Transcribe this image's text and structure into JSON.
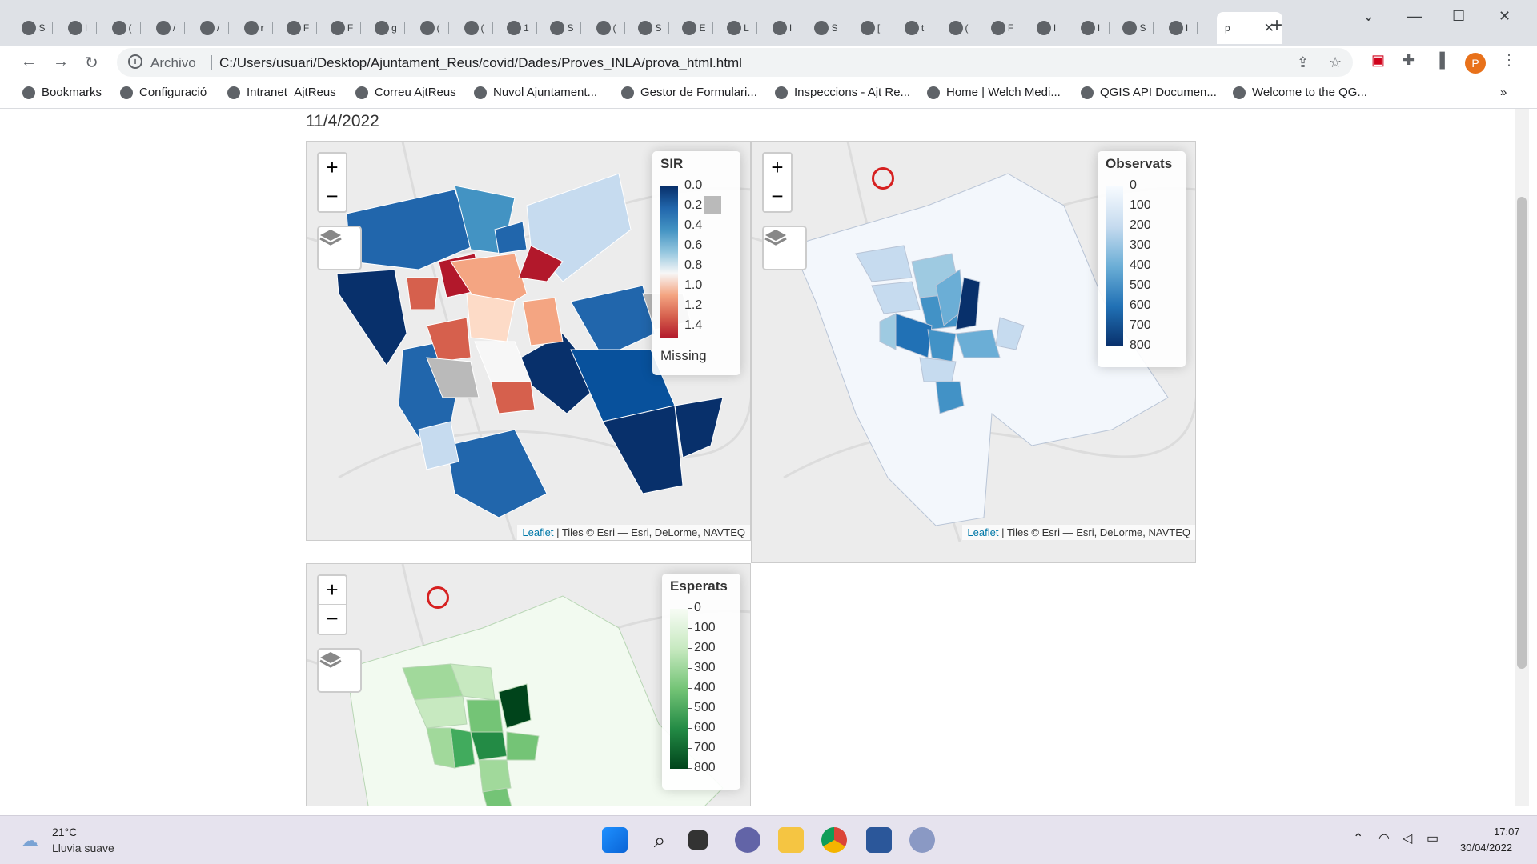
{
  "browser": {
    "tabs": [
      {
        "label": "S"
      },
      {
        "label": "I"
      },
      {
        "label": "("
      },
      {
        "label": "/"
      },
      {
        "label": "/"
      },
      {
        "label": "r"
      },
      {
        "label": "F"
      },
      {
        "label": "F"
      },
      {
        "label": "g"
      },
      {
        "label": "("
      },
      {
        "label": "("
      },
      {
        "label": "1"
      },
      {
        "label": "S"
      },
      {
        "label": "("
      },
      {
        "label": "S"
      },
      {
        "label": "E"
      },
      {
        "label": "L"
      },
      {
        "label": "I"
      },
      {
        "label": "S"
      },
      {
        "label": "["
      },
      {
        "label": "t"
      },
      {
        "label": "("
      },
      {
        "label": "F"
      },
      {
        "label": "I"
      },
      {
        "label": "I"
      },
      {
        "label": "S"
      },
      {
        "label": "I"
      }
    ],
    "active_tab": {
      "label": "p"
    },
    "address": {
      "scheme": "Archivo",
      "url": "C:/Users/usuari/Desktop/Ajuntament_Reus/covid/Dades/Proves_INLA/prova_html.html"
    },
    "bookmarks": [
      {
        "label": "Bookmarks"
      },
      {
        "label": "Configuració"
      },
      {
        "label": "Intranet_AjtReus"
      },
      {
        "label": "Correu AjtReus"
      },
      {
        "label": "Nuvol Ajuntament..."
      },
      {
        "label": "Gestor de Formulari..."
      },
      {
        "label": "Inspeccions - Ajt Re..."
      },
      {
        "label": "Home | Welch Medi..."
      },
      {
        "label": "QGIS API Documen..."
      },
      {
        "label": "Welcome to the QG..."
      }
    ],
    "profile_initial": "P"
  },
  "page": {
    "date": "11/4/2022",
    "attribution": {
      "link": "Leaflet",
      "text": " | Tiles © Esri — Esri, DeLorme, NAVTEQ"
    },
    "maps": [
      {
        "legend_title": "SIR",
        "ticks": [
          "0.0",
          "0.2",
          "0.4",
          "0.6",
          "0.8",
          "1.0",
          "1.2",
          "1.4"
        ],
        "missing_label": "Missing",
        "colors": [
          "#08306b",
          "#2166ac",
          "#4393c3",
          "#92c5de",
          "#f7f7f7",
          "#f4a582",
          "#d6604d",
          "#b2182b"
        ]
      },
      {
        "legend_title": "Observats",
        "ticks": [
          "0",
          "100",
          "200",
          "300",
          "400",
          "500",
          "600",
          "700",
          "800"
        ],
        "colors": [
          "#f7fbff",
          "#deebf7",
          "#c6dbef",
          "#9ecae1",
          "#6baed6",
          "#4292c6",
          "#2171b5",
          "#08519c",
          "#08306b"
        ]
      },
      {
        "legend_title": "Esperats",
        "ticks": [
          "0",
          "100",
          "200",
          "300",
          "400",
          "500",
          "600",
          "700",
          "800"
        ],
        "colors": [
          "#f7fcf5",
          "#e5f5e0",
          "#c7e9c0",
          "#a1d99b",
          "#74c476",
          "#41ab5d",
          "#238b45",
          "#006d2c",
          "#00441b"
        ]
      }
    ],
    "zoom_in": "+",
    "zoom_out": "−"
  },
  "taskbar": {
    "weather_temp": "21°C",
    "weather_desc": "Lluvia suave",
    "time": "17:07",
    "date": "30/04/2022"
  }
}
